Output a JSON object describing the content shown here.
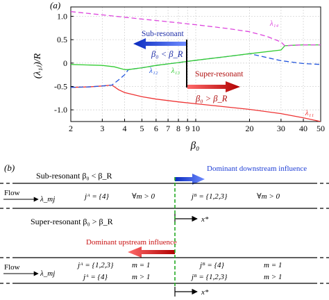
{
  "panel_a": {
    "label": "(a)",
    "ylabel": "(λ₁ⱼ)/R",
    "xlabel": "β₀",
    "subresonant_title": "Sub-resonant",
    "subresonant_cond": "β₀ < β_R",
    "superresonant_title": "Super-resonant",
    "superresonant_cond": "β₀ > β_R",
    "colors": {
      "l11": "#ee3333",
      "l12": "#2255dd",
      "l13": "#33cc33",
      "l14": "#dd44dd",
      "arrow_blue": "#1f3fd6",
      "arrow_red": "#c81010",
      "grid": "#d4d4d4"
    }
  },
  "chart_data": {
    "type": "line",
    "xscale": "log",
    "xlim": [
      2,
      50
    ],
    "ylim": [
      -1.25,
      1.2
    ],
    "xticks": [
      2,
      3,
      4,
      5,
      6,
      7,
      8,
      9,
      10,
      20,
      30,
      40,
      50
    ],
    "yticks": [
      1.0,
      0.5,
      0,
      -0.5,
      -1.0
    ],
    "xlabel": "β₀",
    "ylabel": "(λ₁ⱼ)/R",
    "grid": true,
    "series": [
      {
        "name": "λ₁₁",
        "style": "solid",
        "x": [
          2,
          2.5,
          3,
          3.4,
          3.7,
          4,
          5,
          6,
          8,
          10,
          15,
          20,
          30,
          40,
          50
        ],
        "y": [
          -0.52,
          -0.51,
          -0.49,
          -0.47,
          -0.57,
          -0.63,
          -0.72,
          -0.77,
          -0.83,
          -0.87,
          -0.94,
          -0.99,
          -1.08,
          -1.17,
          -1.25
        ]
      },
      {
        "name": "λ₁₂",
        "style": "dashed",
        "x": [
          2,
          2.5,
          3,
          3.4,
          3.7,
          4,
          4.2,
          5,
          6,
          8,
          10,
          15,
          20,
          30,
          40,
          50
        ],
        "y": [
          -0.52,
          -0.51,
          -0.49,
          -0.47,
          -0.36,
          -0.25,
          -0.14,
          -0.1,
          -0.05,
          0.01,
          0.06,
          0.14,
          0.2,
          0.05,
          -0.01,
          -0.03
        ]
      },
      {
        "name": "λ₁₃",
        "style": "solid",
        "x": [
          2,
          3,
          3.5,
          4,
          4.2,
          5,
          6,
          8,
          10,
          15,
          20,
          30,
          31.5,
          35,
          40,
          50
        ],
        "y": [
          -0.03,
          -0.05,
          -0.08,
          -0.14,
          -0.14,
          -0.1,
          -0.05,
          0.01,
          0.06,
          0.14,
          0.2,
          0.28,
          0.37,
          0.38,
          0.39,
          0.39
        ]
      },
      {
        "name": "λ₁₄",
        "style": "dashed",
        "x": [
          2,
          3,
          4,
          5,
          6,
          8,
          10,
          15,
          20,
          25,
          30,
          31.5,
          35,
          40,
          50
        ],
        "y": [
          1.1,
          1.03,
          0.98,
          0.94,
          0.91,
          0.86,
          0.82,
          0.74,
          0.67,
          0.57,
          0.45,
          0.37,
          0.38,
          0.39,
          0.39
        ]
      }
    ],
    "annotations": [
      {
        "text": "λ₁₁",
        "x": 41,
        "y": -1.12,
        "color": "#ee3333"
      },
      {
        "text": "λ₁₂",
        "x": 5.5,
        "y": -0.21,
        "color": "#2255dd"
      },
      {
        "text": "λ₁₃",
        "x": 7.3,
        "y": -0.21,
        "color": "#33cc33"
      },
      {
        "text": "λ₁₄",
        "x": 26,
        "y": 0.8,
        "color": "#dd44dd"
      }
    ]
  },
  "panel_b": {
    "label": "(b)",
    "subresonant_text": "Sub-resonant  β₀ < β_R",
    "downstream_label": "Dominant downstream influence",
    "flow_label": "Flow",
    "lambda_label": "λ_mj",
    "sub_jA": "jᴬ = {4}",
    "sub_forall_left": "∀m > 0",
    "sub_jB": "jᴮ = {1,2,3}",
    "sub_forall_right": "∀m > 0",
    "xstar_label": "x*",
    "superresonant_text": "Super-resonant  β₀ > β_R",
    "upstream_label": "Dominant upstream influence",
    "super_jA_1": "jᴬ = {1,2,3}",
    "super_m_1": "m = 1",
    "super_jB_1": "jᴮ = {4}",
    "super_m_right_1": "m = 1",
    "super_jA_2": "jᴬ = {4}",
    "super_m_2": "m > 1",
    "super_jB_2": "jᴮ = {1,2,3}",
    "super_m_right_2": "m > 1",
    "colors": {
      "arrow_blue": "#1f3fd6",
      "arrow_red": "#c81010",
      "divider": "#22aa22",
      "downstream_text": "#1f3fd6",
      "upstream_text": "#c81010"
    }
  }
}
